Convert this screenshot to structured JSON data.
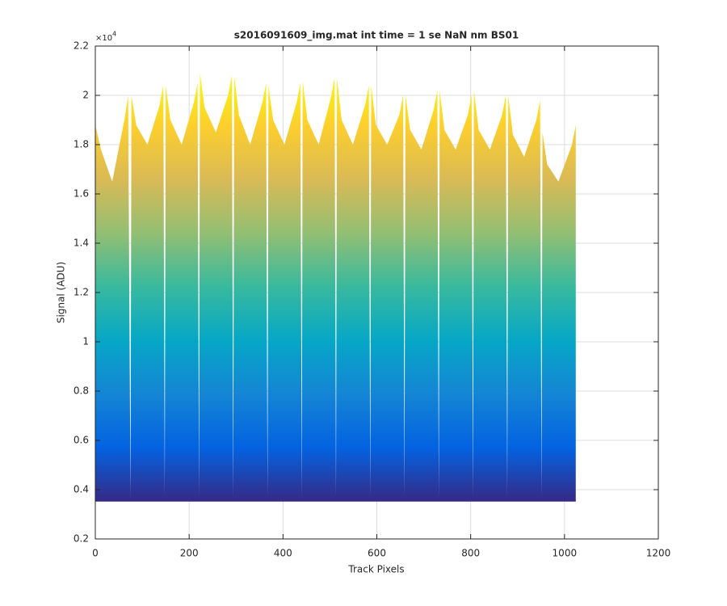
{
  "chart_data": {
    "type": "area",
    "title": "s2016091609_img.mat int time = 1 se  NaN nm BS01",
    "xlabel": "Track Pixels",
    "ylabel": "Signal (ADU)",
    "y_multiplier": {
      "base": "×10",
      "exponent": "4"
    },
    "x": [
      0,
      12,
      36,
      62,
      70,
      75,
      77,
      87,
      111,
      137,
      145,
      148,
      150,
      160,
      184,
      210,
      218,
      221,
      223,
      233,
      257,
      283,
      291,
      294,
      296,
      306,
      330,
      356,
      364,
      367,
      369,
      379,
      403,
      429,
      437,
      440,
      442,
      452,
      476,
      502,
      510,
      513,
      515,
      525,
      549,
      575,
      583,
      586,
      588,
      598,
      622,
      648,
      656,
      659,
      661,
      671,
      695,
      721,
      729,
      732,
      734,
      744,
      768,
      794,
      802,
      805,
      807,
      817,
      841,
      867,
      875,
      878,
      880,
      890,
      914,
      940,
      948,
      951,
      953,
      963,
      987,
      1016,
      1024
    ],
    "series": [
      {
        "color": "#352a87",
        "values": [
          1.88,
          1.78,
          1.65,
          1.9,
          2.0,
          0.37,
          2.0,
          1.88,
          1.8,
          1.96,
          2.04,
          0.37,
          2.04,
          1.9,
          1.8,
          1.97,
          2.05,
          0.37,
          2.09,
          1.95,
          1.85,
          2.0,
          2.08,
          0.37,
          2.08,
          1.92,
          1.8,
          1.97,
          2.05,
          0.37,
          2.04,
          1.9,
          1.8,
          1.97,
          2.05,
          0.37,
          2.06,
          1.9,
          1.8,
          1.99,
          2.07,
          0.37,
          2.07,
          1.9,
          1.8,
          1.96,
          2.04,
          0.37,
          2.04,
          1.88,
          1.8,
          1.92,
          2.0,
          0.37,
          2.0,
          1.86,
          1.78,
          1.94,
          2.02,
          0.37,
          2.02,
          1.86,
          1.78,
          1.92,
          2.0,
          0.37,
          2.02,
          1.86,
          1.78,
          1.92,
          2.0,
          0.37,
          2.0,
          1.84,
          1.75,
          1.9,
          1.98,
          0.37,
          1.85,
          1.72,
          1.65,
          1.8,
          1.88
        ]
      },
      {
        "color": "#352a87",
        "values": [
          0.355,
          0.355,
          0.355,
          0.355,
          0.355,
          0.355,
          0.355,
          0.355,
          0.355,
          0.355,
          0.355,
          0.355,
          0.355,
          0.355,
          0.355,
          0.355,
          0.355,
          0.355,
          0.355,
          0.355,
          0.355,
          0.355,
          0.355,
          0.355,
          0.355,
          0.355,
          0.355,
          0.355,
          0.355,
          0.355,
          0.355,
          0.355,
          0.355,
          0.355,
          0.355,
          0.355,
          0.355,
          0.355,
          0.355,
          0.355,
          0.355,
          0.355,
          0.355,
          0.355,
          0.355,
          0.355,
          0.355,
          0.355,
          0.355,
          0.355,
          0.355,
          0.355,
          0.355,
          0.355,
          0.355,
          0.355,
          0.355,
          0.355,
          0.355,
          0.355,
          0.355,
          0.355,
          0.355,
          0.355,
          0.355,
          0.355,
          0.355,
          0.355,
          0.355,
          0.355,
          0.355,
          0.355,
          0.355,
          0.355,
          0.355,
          0.355,
          0.355,
          0.355,
          0.355,
          0.355,
          0.355,
          0.355,
          0.355
        ]
      }
    ],
    "colormap": [
      "#352a87",
      "#0363e1",
      "#1485d4",
      "#06a7c6",
      "#38b99e",
      "#92bf73",
      "#d9ba56",
      "#fcce2e",
      "#f9fb0e"
    ],
    "xlim": [
      0,
      1200
    ],
    "xticks": [
      0,
      200,
      400,
      600,
      800,
      1000,
      1200
    ],
    "ylim": [
      0.2,
      2.2
    ],
    "yticks": [
      0.2,
      0.4,
      0.6,
      0.8,
      1,
      1.2,
      1.4,
      1.6,
      1.8,
      2,
      2.2
    ],
    "grid": true
  }
}
